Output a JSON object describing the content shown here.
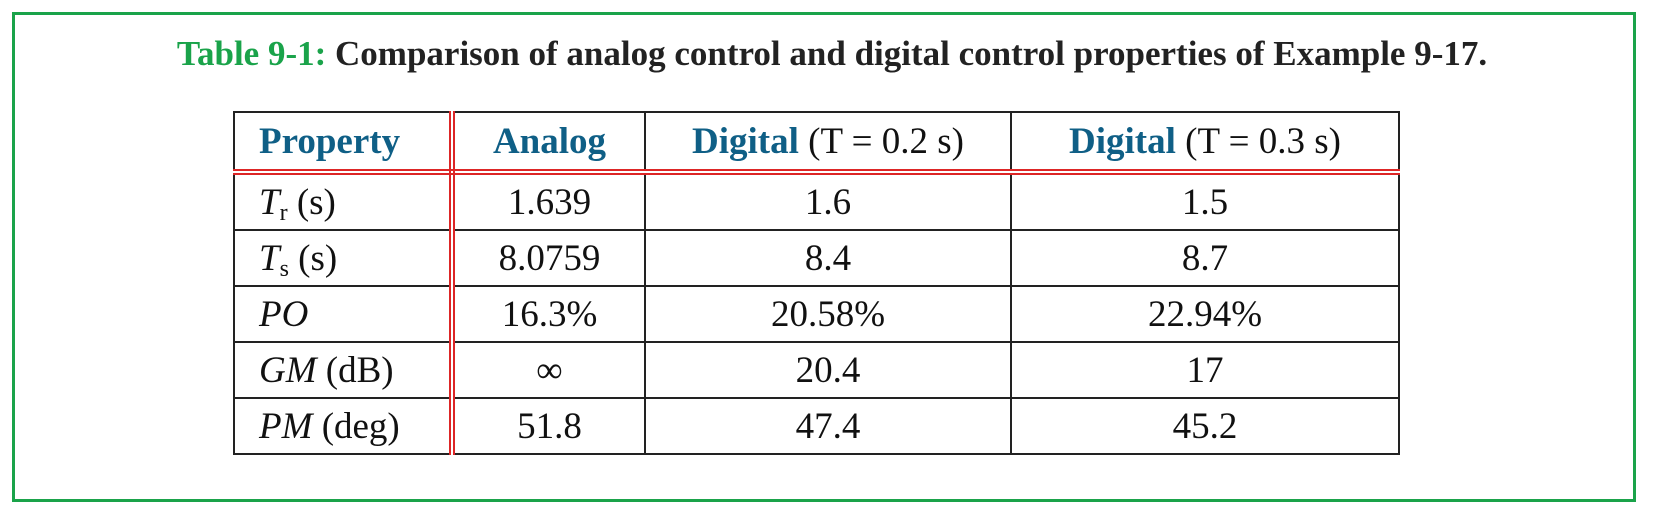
{
  "caption": {
    "label": "Table 9-1:",
    "text": "Comparison of analog control and digital control properties of Example 9-17."
  },
  "table": {
    "headers": [
      {
        "bold": "Property",
        "plain": ""
      },
      {
        "bold": "Analog",
        "plain": ""
      },
      {
        "bold": "Digital",
        "plain": "(T = 0.2 s)"
      },
      {
        "bold": "Digital",
        "plain": "(T = 0.3 s)"
      }
    ],
    "rows": [
      {
        "symbol": "T",
        "sub": "r",
        "unit": "(s)",
        "analog": "1.639",
        "digital_02": "1.6",
        "digital_03": "1.5"
      },
      {
        "symbol": "T",
        "sub": "s",
        "unit": "(s)",
        "analog": "8.0759",
        "digital_02": "8.4",
        "digital_03": "8.7"
      },
      {
        "symbol": "PO",
        "sub": "",
        "unit": "",
        "analog": "16.3%",
        "digital_02": "20.58%",
        "digital_03": "22.94%"
      },
      {
        "symbol": "GM",
        "sub": "",
        "unit": "(dB)",
        "analog": "∞",
        "digital_02": "20.4",
        "digital_03": "17"
      },
      {
        "symbol": "PM",
        "sub": "",
        "unit": "(deg)",
        "analog": "51.8",
        "digital_02": "47.4",
        "digital_03": "45.2"
      }
    ]
  },
  "colors": {
    "frame": "#1aa34a",
    "header_text": "#0f5f86",
    "rule_red": "#dd2626"
  }
}
